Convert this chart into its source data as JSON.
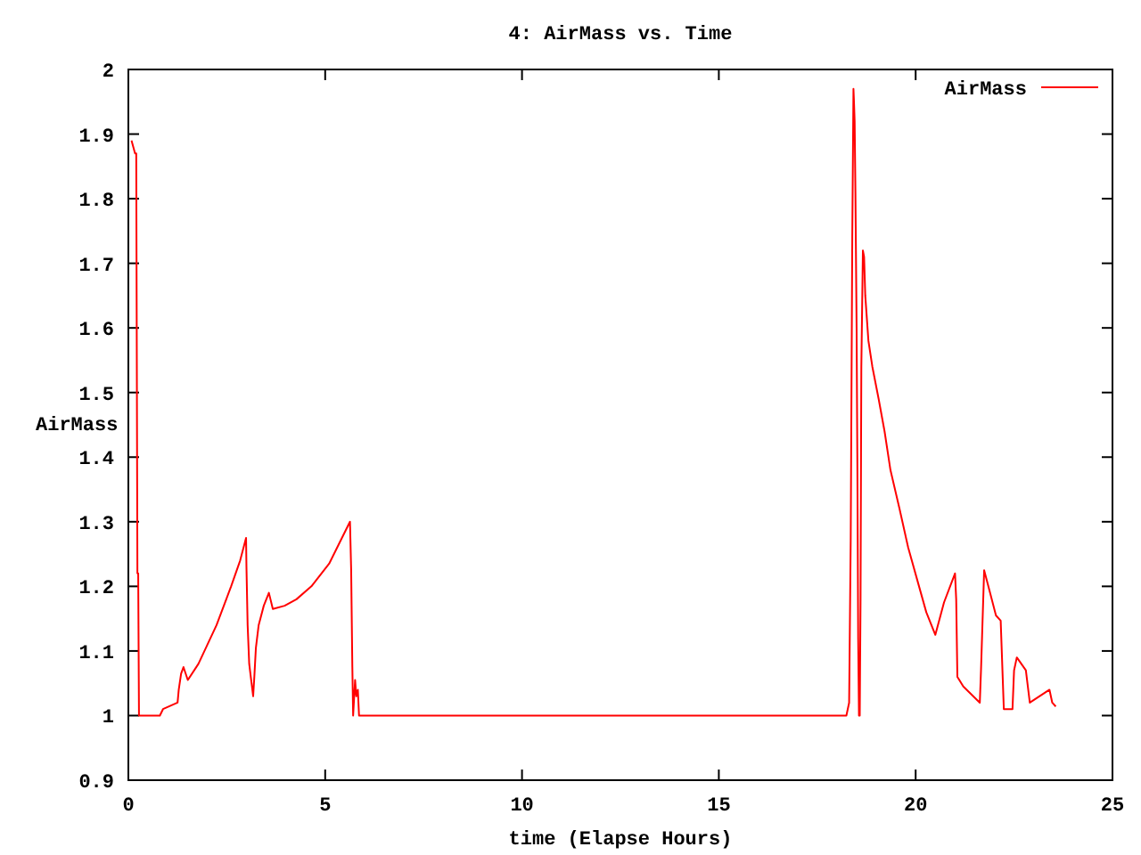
{
  "chart_data": {
    "type": "line",
    "title": "4: AirMass vs. Time",
    "xlabel": "time (Elapse Hours)",
    "ylabel": "AirMass",
    "xlim": [
      0,
      25
    ],
    "xticks": [
      0,
      5,
      10,
      15,
      20,
      25
    ],
    "ylim": [
      0.9,
      2
    ],
    "yticks": [
      0.9,
      1,
      1.1,
      1.2,
      1.3,
      1.4,
      1.5,
      1.6,
      1.7,
      1.8,
      1.9,
      2
    ],
    "grid": false,
    "legend": "top right",
    "marker": "none",
    "line_style": "solid",
    "series": [
      {
        "name": "AirMass",
        "color": "#ff0000",
        "x": [
          0.08,
          0.17,
          0.2,
          0.21,
          0.23,
          0.25,
          0.27,
          0.8,
          0.88,
          1.25,
          1.28,
          1.34,
          1.4,
          1.51,
          1.78,
          2.24,
          2.61,
          2.84,
          2.99,
          3.0,
          3.03,
          3.07,
          3.13,
          3.17,
          3.2,
          3.24,
          3.31,
          3.44,
          3.57,
          3.67,
          3.97,
          4.27,
          4.65,
          5.1,
          5.63,
          5.66,
          5.69,
          5.71,
          5.76,
          5.79,
          5.83,
          5.86,
          5.9,
          18.24,
          18.31,
          18.35,
          18.39,
          18.42,
          18.43,
          18.45,
          18.47,
          18.5,
          18.52,
          18.54,
          18.56,
          18.58,
          18.6,
          18.62,
          18.66,
          18.69,
          18.72,
          18.8,
          18.9,
          19.06,
          19.21,
          19.36,
          19.59,
          19.81,
          20.04,
          20.27,
          20.5,
          20.72,
          21.0,
          21.03,
          21.06,
          21.21,
          21.63,
          21.66,
          21.74,
          21.89,
          22.04,
          22.16,
          22.24,
          22.46,
          22.5,
          22.57,
          22.8,
          22.9,
          23.4,
          23.47,
          23.56
        ],
        "values": [
          1.89,
          1.87,
          1.87,
          1.65,
          1.22,
          1.22,
          1.0,
          1.0,
          1.01,
          1.02,
          1.04,
          1.065,
          1.075,
          1.055,
          1.08,
          1.14,
          1.2,
          1.24,
          1.275,
          1.23,
          1.14,
          1.08,
          1.05,
          1.03,
          1.06,
          1.105,
          1.14,
          1.17,
          1.19,
          1.165,
          1.17,
          1.18,
          1.2,
          1.235,
          1.3,
          1.225,
          1.075,
          1.0,
          1.055,
          1.03,
          1.04,
          1.0,
          1.0,
          1.0,
          1.02,
          1.27,
          1.74,
          1.97,
          1.955,
          1.92,
          1.81,
          1.6,
          1.38,
          1.12,
          1.0,
          1.0,
          1.18,
          1.54,
          1.72,
          1.71,
          1.65,
          1.58,
          1.54,
          1.49,
          1.44,
          1.38,
          1.32,
          1.26,
          1.21,
          1.16,
          1.125,
          1.175,
          1.22,
          1.18,
          1.06,
          1.045,
          1.02,
          1.07,
          1.225,
          1.19,
          1.155,
          1.147,
          1.01,
          1.01,
          1.07,
          1.09,
          1.07,
          1.02,
          1.04,
          1.02,
          1.014
        ]
      }
    ]
  }
}
